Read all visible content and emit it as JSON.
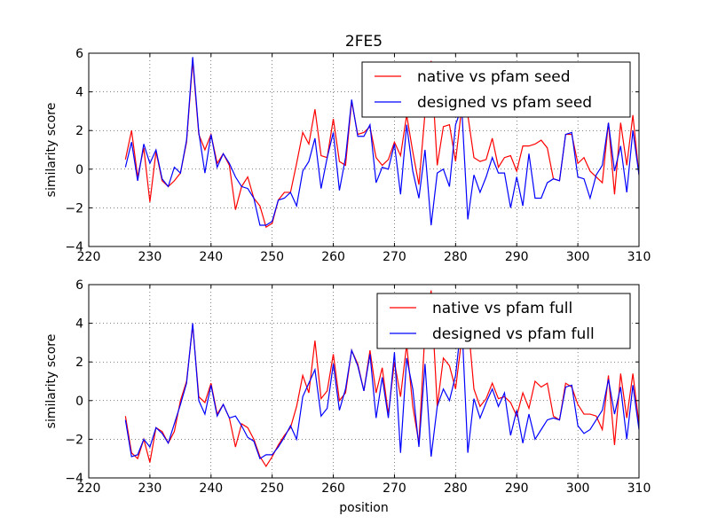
{
  "chart_data": [
    {
      "type": "line",
      "title": "2FE5",
      "xlabel": "",
      "ylabel": "similarity score",
      "xlim": [
        220,
        310
      ],
      "ylim": [
        -4,
        6
      ],
      "xticks": [
        220,
        230,
        240,
        250,
        260,
        270,
        280,
        290,
        300,
        310
      ],
      "yticks": [
        -4,
        -2,
        0,
        2,
        4,
        6
      ],
      "grid": true,
      "legend_position": "top-right",
      "x_start": 226,
      "series": [
        {
          "name": "native vs pfam seed",
          "color": "#ff0000",
          "values": [
            0.5,
            2.0,
            -0.4,
            1.1,
            -1.7,
            0.9,
            -0.6,
            -0.9,
            -0.6,
            -0.2,
            1.4,
            5.6,
            1.8,
            1.0,
            1.8,
            0.3,
            0.8,
            0.2,
            -2.1,
            -0.9,
            -0.4,
            -1.5,
            -1.9,
            -3.0,
            -2.8,
            -1.6,
            -1.2,
            -1.2,
            0.3,
            1.9,
            1.3,
            3.1,
            0.7,
            0.6,
            2.6,
            0.4,
            0.2,
            3.5,
            1.8,
            1.9,
            2.2,
            0.6,
            0.2,
            0.5,
            1.4,
            0.7,
            2.8,
            0.9,
            -0.8,
            2.9,
            5.6,
            0.2,
            2.2,
            2.3,
            0.4,
            3.2,
            2.8,
            0.6,
            0.4,
            0.5,
            1.6,
            0.1,
            0.6,
            0.7,
            -0.1,
            1.2,
            1.2,
            1.3,
            1.5,
            1.1,
            -0.5,
            -0.6,
            1.8,
            1.8,
            0.3,
            0.6,
            -0.1,
            -0.4,
            -0.7,
            2.4,
            -1.3,
            2.4,
            0.2,
            2.8,
            -0.3
          ]
        },
        {
          "name": "designed vs pfam seed",
          "color": "#0000ff",
          "values": [
            0.1,
            1.4,
            -0.6,
            1.3,
            0.3,
            1.0,
            -0.5,
            -0.9,
            0.1,
            -0.2,
            1.5,
            5.8,
            1.9,
            -0.2,
            1.8,
            0.1,
            0.8,
            0.3,
            -0.4,
            -0.9,
            -1.0,
            -1.5,
            -2.9,
            -2.9,
            -2.7,
            -1.6,
            -1.5,
            -1.2,
            -1.9,
            -0.1,
            0.4,
            1.6,
            -1.0,
            0.6,
            1.9,
            -1.1,
            0.6,
            3.6,
            1.7,
            1.7,
            2.3,
            -0.7,
            0.1,
            0.0,
            1.3,
            -1.3,
            2.3,
            -0.1,
            -1.5,
            1.0,
            -2.9,
            -0.2,
            0.0,
            -0.9,
            2.3,
            3.2,
            -2.6,
            -0.3,
            -1.2,
            -0.4,
            0.6,
            -0.2,
            -0.2,
            -2.0,
            -0.4,
            -1.9,
            0.8,
            -1.5,
            -1.5,
            -0.7,
            -0.5,
            -0.6,
            1.8,
            1.9,
            -0.4,
            -0.5,
            -1.5,
            -0.3,
            0.2,
            2.4,
            -0.1,
            1.2,
            -1.2,
            2.0,
            -0.3
          ]
        }
      ]
    },
    {
      "type": "line",
      "title": "",
      "xlabel": "position",
      "ylabel": "similarity score",
      "xlim": [
        220,
        310
      ],
      "ylim": [
        -4,
        6
      ],
      "xticks": [
        220,
        230,
        240,
        250,
        260,
        270,
        280,
        290,
        300,
        310
      ],
      "yticks": [
        -4,
        -2,
        0,
        2,
        4,
        6
      ],
      "grid": true,
      "legend_position": "top-right",
      "x_start": 226,
      "series": [
        {
          "name": "native vs pfam full",
          "color": "#ff0000",
          "values": [
            -0.8,
            -2.7,
            -3.0,
            -2.0,
            -3.2,
            -1.4,
            -1.6,
            -2.2,
            -1.6,
            0.0,
            1.0,
            3.9,
            0.2,
            -0.1,
            0.9,
            -0.7,
            -0.2,
            -0.9,
            -2.4,
            -1.2,
            -1.4,
            -2.0,
            -2.9,
            -3.4,
            -2.9,
            -2.3,
            -1.8,
            -1.4,
            -0.3,
            1.3,
            0.4,
            3.1,
            0.1,
            0.5,
            2.4,
            0.0,
            0.4,
            2.6,
            1.9,
            0.5,
            2.6,
            0.4,
            1.7,
            -0.7,
            2.0,
            0.2,
            2.9,
            -0.3,
            -2.2,
            3.6,
            5.7,
            -0.3,
            2.2,
            1.8,
            0.6,
            3.2,
            4.2,
            0.6,
            -0.3,
            0.1,
            0.9,
            0.1,
            0.2,
            -0.1,
            -0.8,
            0.4,
            -0.4,
            1.0,
            0.7,
            0.9,
            -0.8,
            -1.0,
            0.9,
            0.7,
            -0.2,
            -0.7,
            -0.7,
            -0.8,
            -1.5,
            1.3,
            -2.3,
            1.4,
            -0.9,
            1.4,
            -1.2
          ]
        },
        {
          "name": "designed vs pfam full",
          "color": "#0000ff",
          "values": [
            -1.0,
            -2.9,
            -2.8,
            -2.0,
            -2.4,
            -1.4,
            -1.7,
            -2.2,
            -1.2,
            -0.2,
            0.9,
            4.0,
            0.0,
            -0.7,
            0.8,
            -0.8,
            -0.2,
            -0.9,
            -0.8,
            -1.3,
            -1.9,
            -2.1,
            -3.0,
            -2.8,
            -2.8,
            -2.4,
            -1.9,
            -1.3,
            -2.0,
            0.2,
            0.9,
            1.6,
            -0.8,
            -0.4,
            1.9,
            -0.5,
            0.6,
            2.6,
            1.8,
            0.5,
            2.4,
            -0.9,
            1.2,
            -0.9,
            2.5,
            -2.7,
            2.2,
            0.6,
            -2.4,
            1.9,
            -2.9,
            -0.3,
            0.6,
            0.0,
            1.3,
            4.2,
            -2.7,
            0.1,
            -0.9,
            -0.1,
            0.6,
            -0.3,
            0.4,
            -1.8,
            -0.5,
            -2.2,
            -0.7,
            -2.0,
            -1.5,
            -1.0,
            -0.9,
            -1.0,
            0.7,
            0.8,
            -1.3,
            -1.7,
            -1.5,
            -1.0,
            -0.5,
            1.1,
            -0.7,
            0.7,
            -2.0,
            0.8,
            -1.5
          ]
        }
      ]
    }
  ]
}
